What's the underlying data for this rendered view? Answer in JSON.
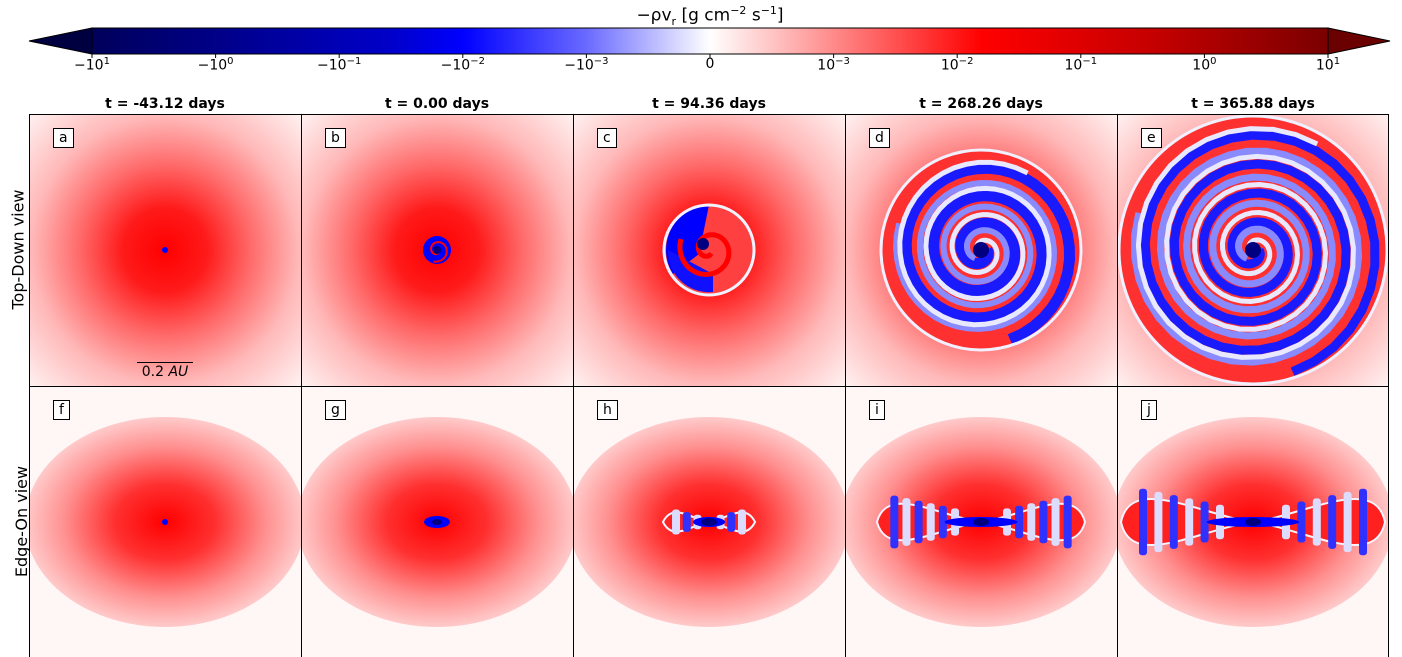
{
  "colorbar": {
    "label_prefix": "−ρv",
    "label_sub": "r",
    "label_units_pre": " [g cm",
    "label_exp1": "−2",
    "label_mid": " s",
    "label_exp2": "−1",
    "label_close": "]",
    "ticks": [
      {
        "base": "−10",
        "exp": "1"
      },
      {
        "base": "−10",
        "exp": "0"
      },
      {
        "base": "−10",
        "exp": "−1"
      },
      {
        "base": "−10",
        "exp": "−2"
      },
      {
        "base": "−10",
        "exp": "−3"
      },
      {
        "base": "0",
        "exp": ""
      },
      {
        "base": "10",
        "exp": "−3"
      },
      {
        "base": "10",
        "exp": "−2"
      },
      {
        "base": "10",
        "exp": "−1"
      },
      {
        "base": "10",
        "exp": "0"
      },
      {
        "base": "10",
        "exp": "1"
      }
    ],
    "colors": [
      "#000040",
      "#00005a",
      "#0000b0",
      "#0000ff",
      "#8080ff",
      "#ffffff",
      "#ff8080",
      "#ff0000",
      "#c80000",
      "#8a0000",
      "#6a0000"
    ]
  },
  "columns": [
    {
      "title": "t = -43.12 days"
    },
    {
      "title": "t = 0.00 days"
    },
    {
      "title": "t = 94.36 days"
    },
    {
      "title": "t = 268.26 days"
    },
    {
      "title": "t = 365.88 days"
    }
  ],
  "rows": [
    {
      "label": "Top-Down view",
      "panels": [
        "a",
        "b",
        "c",
        "d",
        "e"
      ]
    },
    {
      "label": "Edge-On view",
      "panels": [
        "f",
        "g",
        "h",
        "i",
        "j"
      ]
    }
  ],
  "scalebar": {
    "value": "0.2",
    "unit": "AU"
  }
}
